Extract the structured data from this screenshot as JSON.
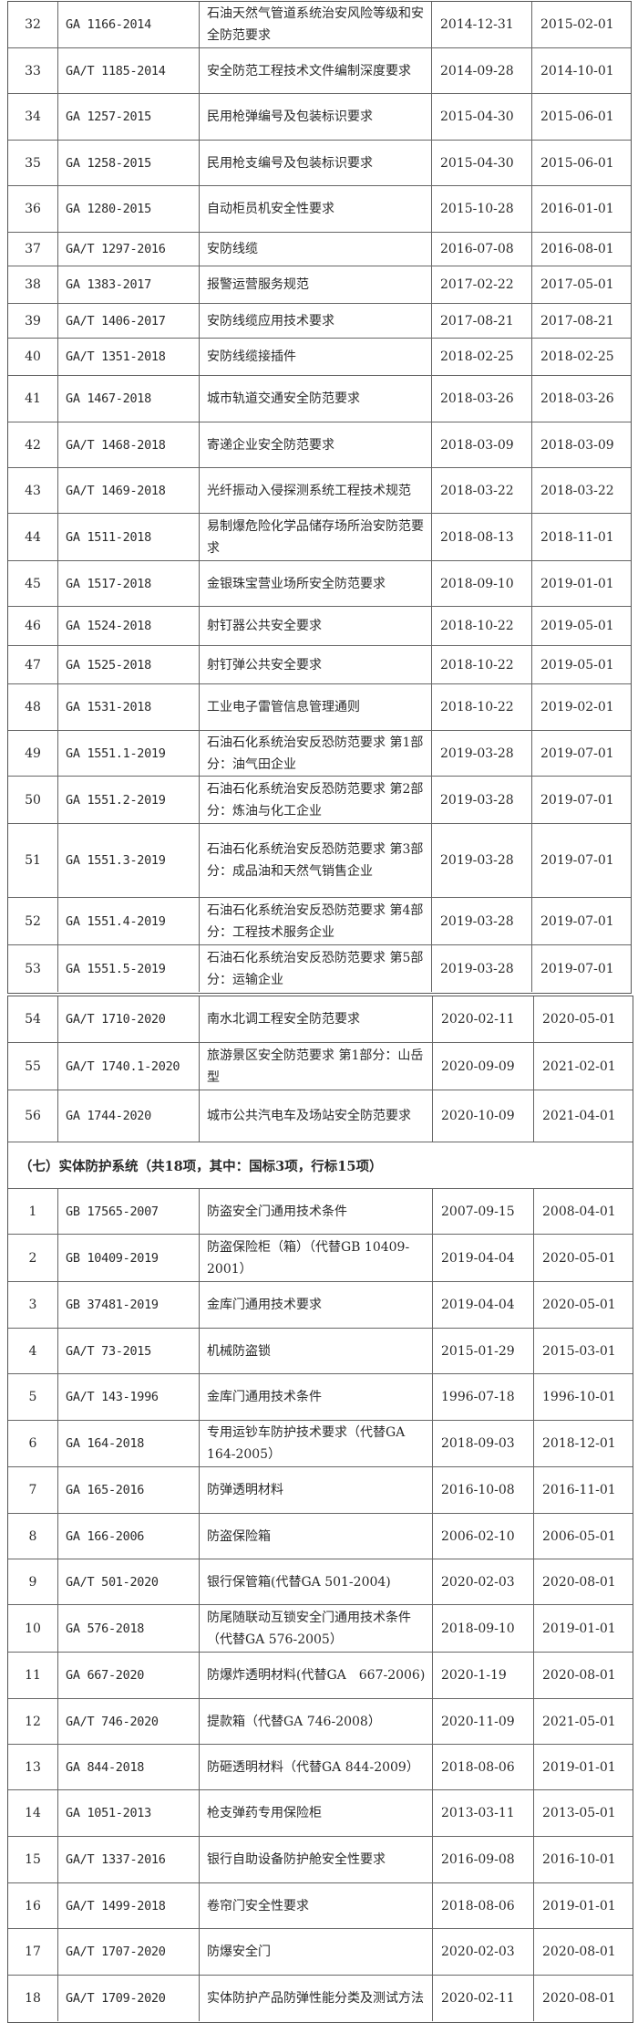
{
  "table_a": {
    "rows": [
      [
        "32",
        "GA 1166-2014",
        "石油天然气管道系统治安风险等级和安全防范要求",
        "2014-12-31",
        "2015-02-01"
      ],
      [
        "33",
        "GA/T 1185-2014",
        "安全防范工程技术文件编制深度要求",
        "2014-09-28",
        "2014-10-01"
      ],
      [
        "34",
        "GA 1257-2015",
        "民用枪弹编号及包装标识要求",
        "2015-04-30",
        "2015-06-01"
      ],
      [
        "35",
        "GA 1258-2015",
        "民用枪支编号及包装标识要求",
        "2015-04-30",
        "2015-06-01"
      ],
      [
        "36",
        "GA 1280-2015",
        "自动柜员机安全性要求",
        "2015-10-28",
        "2016-01-01"
      ],
      [
        "37",
        "GA/T 1297-2016",
        "安防线缆",
        "2016-07-08",
        "2016-08-01"
      ],
      [
        "38",
        "GA 1383-2017",
        "报警运营服务规范",
        "2017-02-22",
        "2017-05-01"
      ],
      [
        "39",
        "GA/T 1406-2017",
        "安防线缆应用技术要求",
        "2017-08-21",
        "2017-08-21"
      ],
      [
        "40",
        "GA/T 1351-2018",
        "安防线缆接插件",
        "2018-02-25",
        "2018-02-25"
      ],
      [
        "41",
        "GA 1467-2018",
        "城市轨道交通安全防范要求",
        "2018-03-26",
        "2018-03-26"
      ],
      [
        "42",
        "GA/T 1468-2018",
        "寄递企业安全防范要求",
        "2018-03-09",
        "2018-03-09"
      ],
      [
        "43",
        "GA/T 1469-2018",
        "光纤振动入侵探测系统工程技术规范",
        "2018-03-22",
        "2018-03-22"
      ],
      [
        "44",
        "GA 1511-2018",
        "易制爆危险化学品储存场所治安防范要求",
        "2018-08-13",
        "2018-11-01"
      ],
      [
        "45",
        "GA 1517-2018",
        "金银珠宝营业场所安全防范要求",
        "2018-09-10",
        "2019-01-01"
      ],
      [
        "46",
        "GA 1524-2018",
        "射钉器公共安全要求",
        "2018-10-22",
        "2019-05-01"
      ],
      [
        "47",
        "GA 1525-2018",
        "射钉弹公共安全要求",
        "2018-10-22",
        "2019-05-01"
      ],
      [
        "48",
        "GA 1531-2018",
        "工业电子雷管信息管理通则",
        "2018-10-22",
        "2019-02-01"
      ],
      [
        "49",
        "GA 1551.1-2019",
        "石油石化系统治安反恐防范要求 第1部分：油气田企业",
        "2019-03-28",
        "2019-07-01"
      ],
      [
        "50",
        "GA 1551.2-2019",
        "石油石化系统治安反恐防范要求 第2部分：炼油与化工企业",
        "2019-03-28",
        "2019-07-01"
      ],
      [
        "51",
        "GA 1551.3-2019",
        "石油石化系统治安反恐防范要求 第3部分：成品油和天然气销售企业",
        "2019-03-28",
        "2019-07-01"
      ],
      [
        "52",
        "GA 1551.4-2019",
        "石油石化系统治安反恐防范要求 第4部分：工程技术服务企业",
        "2019-03-28",
        "2019-07-01"
      ],
      [
        "53",
        "GA 1551.5-2019",
        "石油石化系统治安反恐防范要求 第5部分：运输企业",
        "2019-03-28",
        "2019-07-01"
      ]
    ]
  },
  "table_b": {
    "rows_top": [
      [
        "54",
        "GA/T 1710-2020",
        "南水北调工程安全防范要求",
        "2020-02-11",
        "2020-05-01"
      ],
      [
        "55",
        "GA/T 1740.1-2020",
        "旅游景区安全防范要求 第1部分：山岳型",
        "2020-09-09",
        "2021-02-01"
      ],
      [
        "56",
        "GA 1744-2020",
        "城市公共汽电车及场站安全防范要求",
        "2020-10-09",
        "2021-04-01"
      ]
    ],
    "section_title": "（七）实体防护系统（共18项，其中：国标3项，行标15项）",
    "rows": [
      [
        "1",
        "GB 17565-2007",
        "防盗安全门通用技术条件",
        "2007-09-15",
        "2008-04-01"
      ],
      [
        "2",
        "GB 10409-2019",
        "防盗保险柜（箱）（代替GB 10409-2001）",
        "2019-04-04",
        "2020-05-01"
      ],
      [
        "3",
        "GB 37481-2019",
        "金库门通用技术要求",
        "2019-04-04",
        "2020-05-01"
      ],
      [
        "4",
        "GA/T 73-2015",
        "机械防盗锁",
        "2015-01-29",
        "2015-03-01"
      ],
      [
        "5",
        "GA/T 143-1996",
        "金库门通用技术条件",
        "1996-07-18",
        "1996-10-01"
      ],
      [
        "6",
        "GA 164-2018",
        "专用运钞车防护技术要求（代替GA 164-2005）",
        "2018-09-03",
        "2018-12-01"
      ],
      [
        "7",
        "GA 165-2016",
        "防弹透明材料",
        "2016-10-08",
        "2016-11-01"
      ],
      [
        "8",
        "GA 166-2006",
        "防盗保险箱",
        "2006-02-10",
        "2006-05-01"
      ],
      [
        "9",
        "GA/T 501-2020",
        "银行保管箱(代替GA 501-2004)",
        "2020-02-03",
        "2020-08-01"
      ],
      [
        "10",
        "GA 576-2018",
        "防尾随联动互锁安全门通用技术条件（代替GA 576-2005）",
        "2018-09-10",
        "2019-01-01"
      ],
      [
        "11",
        "GA 667-2020",
        "防爆炸透明材料(代替GA　667-2006)",
        "2020-1-19",
        "2020-08-01"
      ],
      [
        "12",
        "GA/T 746-2020",
        "提款箱（代替GA 746-2008）",
        "2020-11-09",
        "2021-05-01"
      ],
      [
        "13",
        "GA 844-2018",
        "防砸透明材料（代替GA 844-2009）",
        "2018-08-06",
        "2019-01-01"
      ],
      [
        "14",
        "GA 1051-2013",
        "枪支弹药专用保险柜",
        "2013-03-11",
        "2013-05-01"
      ],
      [
        "15",
        "GA/T 1337-2016",
        "银行自助设备防护舱安全性要求",
        "2016-09-08",
        "2016-10-01"
      ],
      [
        "16",
        "GA/T 1499-2018",
        "卷帘门安全性要求",
        "2018-08-06",
        "2019-01-01"
      ],
      [
        "17",
        "GA/T 1707-2020",
        "防爆安全门",
        "2020-02-03",
        "2020-08-01"
      ],
      [
        "18",
        "GA/T 1709-2020",
        "实体防护产品防弹性能分类及测试方法",
        "2020-02-11",
        "2020-08-01"
      ]
    ]
  }
}
